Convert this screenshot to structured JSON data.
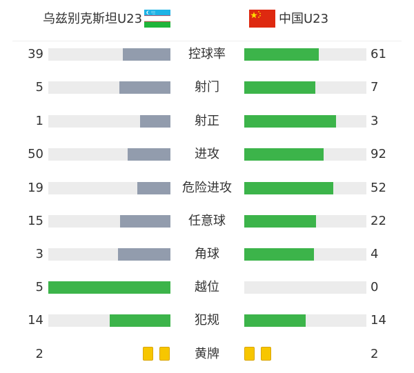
{
  "teams": {
    "left": {
      "name": "乌兹别克斯坦U23",
      "flag": "uzbekistan-flag",
      "color": "#929cad"
    },
    "right": {
      "name": "中国U23",
      "flag": "china-flag",
      "color": "#3cb44a"
    }
  },
  "colors": {
    "track": "#ececec",
    "gray_bar": "#929cad",
    "green_bar": "#3cb44a",
    "yellow_card": "#f7c600"
  },
  "stats": [
    {
      "label": "控球率",
      "left": "39",
      "right": "61",
      "left_share": 0.39,
      "right_share": 0.61,
      "leader": "right"
    },
    {
      "label": "射门",
      "left": "5",
      "right": "7",
      "left_share": 0.42,
      "right_share": 0.58,
      "leader": "right"
    },
    {
      "label": "射正",
      "left": "1",
      "right": "3",
      "left_share": 0.25,
      "right_share": 0.75,
      "leader": "right"
    },
    {
      "label": "进攻",
      "left": "50",
      "right": "92",
      "left_share": 0.35,
      "right_share": 0.65,
      "leader": "right"
    },
    {
      "label": "危险进攻",
      "left": "19",
      "right": "52",
      "left_share": 0.27,
      "right_share": 0.73,
      "leader": "right"
    },
    {
      "label": "任意球",
      "left": "15",
      "right": "22",
      "left_share": 0.41,
      "right_share": 0.59,
      "leader": "right"
    },
    {
      "label": "角球",
      "left": "3",
      "right": "4",
      "left_share": 0.43,
      "right_share": 0.57,
      "leader": "right"
    },
    {
      "label": "越位",
      "left": "5",
      "right": "0",
      "left_share": 1.0,
      "right_share": 0.0,
      "leader": "left"
    },
    {
      "label": "犯规",
      "left": "14",
      "right": "14",
      "left_share": 0.5,
      "right_share": 0.5,
      "leader": "both"
    }
  ],
  "cards": {
    "label": "黄牌",
    "left": "2",
    "right": "2",
    "left_count": 2,
    "right_count": 2,
    "icon": "yellow-card-icon"
  }
}
